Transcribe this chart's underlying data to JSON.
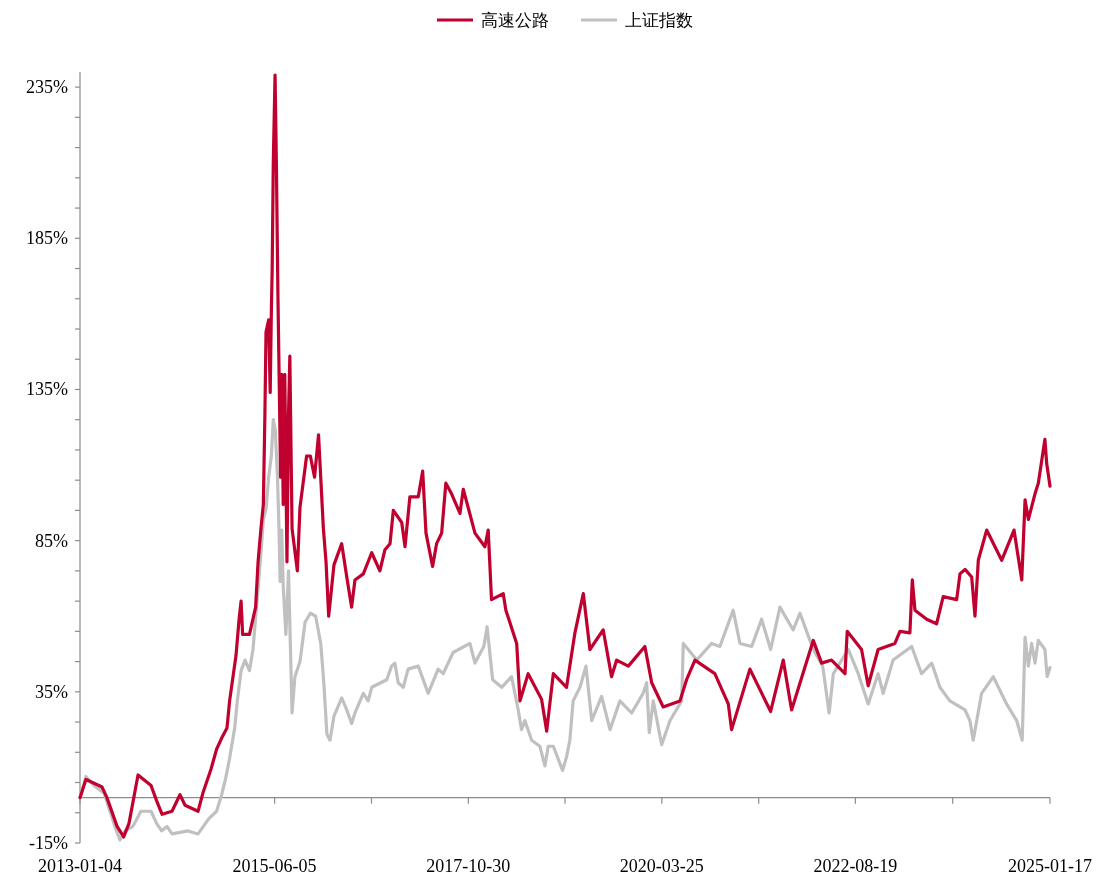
{
  "chart_data": {
    "type": "line",
    "legend": "top",
    "xlim": [
      "2013-01-04",
      "2025-01-17"
    ],
    "xticks": [
      "2013-01-04",
      {
        "value": "2014-03-21",
        "label": null
      },
      "2015-06-05",
      {
        "value": "2016-08-17",
        "label": null
      },
      "2017-10-30",
      {
        "value": "2019-01-11",
        "label": null
      },
      "2020-03-25",
      {
        "value": "2021-06-07",
        "label": null
      },
      "2022-08-19",
      {
        "value": "2023-11-03",
        "label": null
      },
      "2025-01-17"
    ],
    "ylim": [
      -15,
      240
    ],
    "yticks": [
      {
        "value": -15,
        "label": "-15%"
      },
      {
        "value": -5,
        "label": null
      },
      {
        "value": 5,
        "label": null
      },
      {
        "value": 15,
        "label": null
      },
      {
        "value": 25,
        "label": null
      },
      {
        "value": 35,
        "label": "35%"
      },
      {
        "value": 45,
        "label": null
      },
      {
        "value": 55,
        "label": null
      },
      {
        "value": 65,
        "label": null
      },
      {
        "value": 75,
        "label": null
      },
      {
        "value": 85,
        "label": "85%"
      },
      {
        "value": 95,
        "label": null
      },
      {
        "value": 105,
        "label": null
      },
      {
        "value": 115,
        "label": null
      },
      {
        "value": 125,
        "label": null
      },
      {
        "value": 135,
        "label": "135%"
      },
      {
        "value": 145,
        "label": null
      },
      {
        "value": 155,
        "label": null
      },
      {
        "value": 165,
        "label": null
      },
      {
        "value": 175,
        "label": null
      },
      {
        "value": 185,
        "label": "185%"
      },
      {
        "value": 195,
        "label": null
      },
      {
        "value": 205,
        "label": null
      },
      {
        "value": 215,
        "label": null
      },
      {
        "value": 225,
        "label": null
      },
      {
        "value": 235,
        "label": "235%"
      }
    ],
    "series": [
      {
        "name": "高速公路",
        "color": "#c0002f",
        "x": [
          "2013-01-04",
          "2013-01-31",
          "2013-04-14",
          "2013-05-06",
          "2013-06-21",
          "2013-07-21",
          "2013-08-14",
          "2013-09-24",
          "2013-11-22",
          "2013-12-17",
          "2014-01-11",
          "2014-02-25",
          "2014-04-02",
          "2014-04-25",
          "2014-06-23",
          "2014-07-15",
          "2014-08-21",
          "2014-09-15",
          "2014-10-10",
          "2014-11-01",
          "2014-11-13",
          "2014-12-12",
          "2014-12-26",
          "2015-01-04",
          "2015-01-11",
          "2015-02-11",
          "2015-03-11",
          "2015-03-22",
          "2015-04-04",
          "2015-04-15",
          "2015-04-22",
          "2015-04-27",
          "2015-05-09",
          "2015-05-16",
          "2015-05-21",
          "2015-05-25",
          "2015-05-30",
          "2015-06-07",
          "2015-06-13",
          "2015-06-20",
          "2015-06-27",
          "2015-07-02",
          "2015-07-07",
          "2015-07-14",
          "2015-07-21",
          "2015-07-31",
          "2015-08-07",
          "2015-08-13",
          "2015-08-23",
          "2015-09-16",
          "2015-09-28",
          "2015-10-28",
          "2015-11-14",
          "2015-12-03",
          "2015-12-21",
          "2016-01-12",
          "2016-01-24",
          "2016-02-05",
          "2016-02-29",
          "2016-04-04",
          "2016-04-27",
          "2016-05-19",
          "2016-06-03",
          "2016-07-11",
          "2016-08-18",
          "2016-09-24",
          "2016-10-17",
          "2016-11-09",
          "2016-11-24",
          "2017-01-01",
          "2017-01-16",
          "2017-02-07",
          "2017-03-17",
          "2017-04-06",
          "2017-04-21",
          "2017-05-21",
          "2017-06-08",
          "2017-07-01",
          "2017-07-20",
          "2017-08-15",
          "2017-09-22",
          "2017-10-07",
          "2017-11-29",
          "2018-01-13",
          "2018-01-28",
          "2018-02-12",
          "2018-04-06",
          "2018-04-18",
          "2018-06-06",
          "2018-06-21",
          "2018-07-28",
          "2018-09-27",
          "2018-10-20",
          "2018-11-19",
          "2019-01-18",
          "2019-02-25",
          "2019-04-04",
          "2019-05-04",
          "2019-07-03",
          "2019-08-10",
          "2019-09-02",
          "2019-10-25",
          "2020-01-08",
          "2020-02-08",
          "2020-03-31",
          "2020-06-15",
          "2020-07-15",
          "2020-08-22",
          "2020-11-20",
          "2021-01-20",
          "2021-02-04",
          "2021-04-28",
          "2021-07-31",
          "2021-09-26",
          "2021-11-03",
          "2022-02-09",
          "2022-03-19",
          "2022-05-03",
          "2022-07-03",
          "2022-07-13",
          "2022-09-16",
          "2022-10-16",
          "2022-11-30",
          "2023-02-14",
          "2023-03-09",
          "2023-04-23",
          "2023-05-04",
          "2023-05-16",
          "2023-07-08",
          "2023-08-22",
          "2023-09-21",
          "2023-11-21",
          "2023-12-06",
          "2023-12-29",
          "2024-01-28",
          "2024-02-12",
          "2024-02-27",
          "2024-04-05",
          "2024-06-12",
          "2024-08-07",
          "2024-09-11",
          "2024-09-26",
          "2024-10-11",
          "2024-11-10",
          "2024-11-25",
          "2024-12-25",
          "2025-01-02",
          "2025-01-17"
        ],
        "values": [
          0,
          6,
          3.5,
          0,
          -9.5,
          -13,
          -8.5,
          7.5,
          4,
          -1,
          -5.5,
          -4.5,
          1,
          -2.5,
          -4.5,
          1.5,
          9.5,
          16,
          20,
          23,
          32,
          47,
          59,
          65,
          54,
          54,
          63,
          78,
          89,
          97,
          127,
          154,
          158,
          134,
          160,
          175,
          210,
          239,
          210,
          166,
          132,
          106,
          140,
          97,
          140,
          78,
          127,
          146,
          89,
          75,
          96,
          113,
          113,
          106,
          120,
          89,
          78,
          60,
          77,
          84,
          73,
          63,
          72,
          74,
          81,
          75,
          82,
          84,
          95,
          91,
          83,
          99.5,
          99.5,
          108,
          87.5,
          76.5,
          84,
          87.5,
          104,
          100.5,
          94,
          102,
          87.5,
          83,
          88.5,
          65.5,
          67.5,
          62,
          51,
          32,
          41,
          32.5,
          22,
          41,
          36.5,
          54.5,
          67.5,
          49,
          55.5,
          40,
          45.5,
          43.5,
          50,
          38,
          30,
          32,
          39,
          45.5,
          41,
          31,
          22.5,
          42.5,
          28.5,
          45.5,
          29,
          52,
          44.5,
          45.5,
          41,
          55,
          49,
          37,
          49,
          51,
          55,
          54.5,
          72,
          62,
          59,
          57.5,
          66.5,
          65.5,
          74,
          75.5,
          73,
          60,
          78.5,
          88.5,
          78.5,
          88.5,
          72,
          98.5,
          92,
          100.5,
          104,
          118.5,
          110.5,
          103
        ]
      },
      {
        "name": "上证指数",
        "color": "#c0c0c0",
        "x": [
          "2013-01-04",
          "2013-01-31",
          "2013-03-08",
          "2013-04-23",
          "2013-06-11",
          "2013-07-04",
          "2013-07-27",
          "2013-09-01",
          "2013-10-07",
          "2013-11-22",
          "2013-12-17",
          "2014-01-09",
          "2014-02-02",
          "2014-02-25",
          "2014-05-08",
          "2014-06-23",
          "2014-07-17",
          "2014-08-10",
          "2014-09-15",
          "2014-10-08",
          "2014-10-25",
          "2014-11-13",
          "2014-12-06",
          "2014-12-18",
          "2015-01-04",
          "2015-01-22",
          "2015-02-11",
          "2015-02-27",
          "2015-03-15",
          "2015-04-03",
          "2015-04-15",
          "2015-04-27",
          "2015-05-09",
          "2015-05-21",
          "2015-05-30",
          "2015-06-08",
          "2015-06-18",
          "2015-06-25",
          "2015-06-30",
          "2015-07-07",
          "2015-07-14",
          "2015-07-26",
          "2015-08-07",
          "2015-08-23",
          "2015-09-05",
          "2015-09-28",
          "2015-10-21",
          "2015-11-14",
          "2015-12-08",
          "2015-12-31",
          "2016-01-14",
          "2016-01-28",
          "2016-02-11",
          "2016-02-29",
          "2016-04-04",
          "2016-04-27",
          "2016-05-19",
          "2016-06-03",
          "2016-07-11",
          "2016-08-02",
          "2016-08-18",
          "2016-10-25",
          "2016-11-16",
          "2016-12-01",
          "2016-12-16",
          "2017-01-08",
          "2017-01-30",
          "2017-03-17",
          "2017-05-01",
          "2017-06-15",
          "2017-07-08",
          "2017-08-22",
          "2017-11-06",
          "2017-11-29",
          "2018-01-08",
          "2018-01-23",
          "2018-02-17",
          "2018-03-30",
          "2018-05-14",
          "2018-06-13",
          "2018-06-28",
          "2018-07-13",
          "2018-08-13",
          "2018-09-19",
          "2018-10-12",
          "2018-10-27",
          "2018-11-19",
          "2018-12-31",
          "2019-01-18",
          "2019-02-02",
          "2019-02-17",
          "2019-03-20",
          "2019-04-16",
          "2019-05-12",
          "2019-06-26",
          "2019-08-03",
          "2019-09-17",
          "2019-11-09",
          "2019-12-31",
          "2020-01-16",
          "2020-01-28",
          "2020-02-15",
          "2020-03-24",
          "2020-05-01",
          "2020-06-23",
          "2020-06-30",
          "2020-08-30",
          "2020-11-05",
          "2020-12-13",
          "2021-01-27",
          "2021-02-11",
          "2021-03-14",
          "2021-05-06",
          "2021-06-20",
          "2021-07-31",
          "2021-09-11",
          "2021-11-10",
          "2021-12-11",
          "2022-01-25",
          "2022-02-17",
          "2022-03-24",
          "2022-04-22",
          "2022-05-11",
          "2022-07-18",
          "2022-09-01",
          "2022-10-16",
          "2022-11-30",
          "2022-12-23",
          "2023-02-06",
          "2023-05-01",
          "2023-06-15",
          "2023-07-31",
          "2023-09-06",
          "2023-10-21",
          "2023-12-29",
          "2024-01-20",
          "2024-02-04",
          "2024-03-13",
          "2024-05-05",
          "2024-07-04",
          "2024-08-19",
          "2024-09-13",
          "2024-09-26",
          "2024-10-11",
          "2024-10-26",
          "2024-11-10",
          "2024-11-25",
          "2024-12-25",
          "2025-01-04",
          "2025-01-17"
        ],
        "values": [
          0,
          7,
          4,
          1.5,
          -9.5,
          -14,
          -11,
          -9.5,
          -4.5,
          -4.5,
          -8.5,
          -11,
          -9.5,
          -12,
          -11,
          -12,
          -9.5,
          -7,
          -4.5,
          1,
          6,
          13,
          23,
          32,
          42,
          45.5,
          42,
          49,
          63,
          80,
          92,
          95.5,
          106,
          113,
          125,
          121.5,
          106,
          88.5,
          71.5,
          88.5,
          70,
          54,
          75,
          28,
          40,
          45,
          58,
          61,
          60,
          51,
          38,
          21,
          19,
          27,
          33,
          29,
          24.5,
          28,
          34.5,
          32,
          36.5,
          39,
          43.5,
          44.5,
          38,
          36.5,
          42.5,
          43.5,
          34.5,
          42.5,
          41,
          48,
          51,
          44.5,
          50,
          56.5,
          39,
          36.5,
          40,
          29,
          22.5,
          25.5,
          19,
          17,
          10.5,
          17,
          17,
          9,
          13.5,
          19,
          32,
          36.5,
          43.5,
          25.5,
          33.5,
          22.5,
          32,
          28,
          34.5,
          38,
          21.5,
          32,
          17.5,
          25.5,
          32,
          51,
          45.5,
          51,
          50,
          59,
          62,
          51,
          50,
          59,
          49,
          63,
          55.5,
          61,
          52,
          48,
          43.5,
          28,
          41,
          49,
          41,
          31,
          41,
          34.5,
          45.5,
          50,
          41,
          44.5,
          36.5,
          32,
          29,
          25.5,
          19,
          34.5,
          40,
          31,
          25.5,
          19,
          53,
          43.5,
          51,
          44.5,
          52,
          49,
          40,
          43
        ]
      }
    ]
  }
}
